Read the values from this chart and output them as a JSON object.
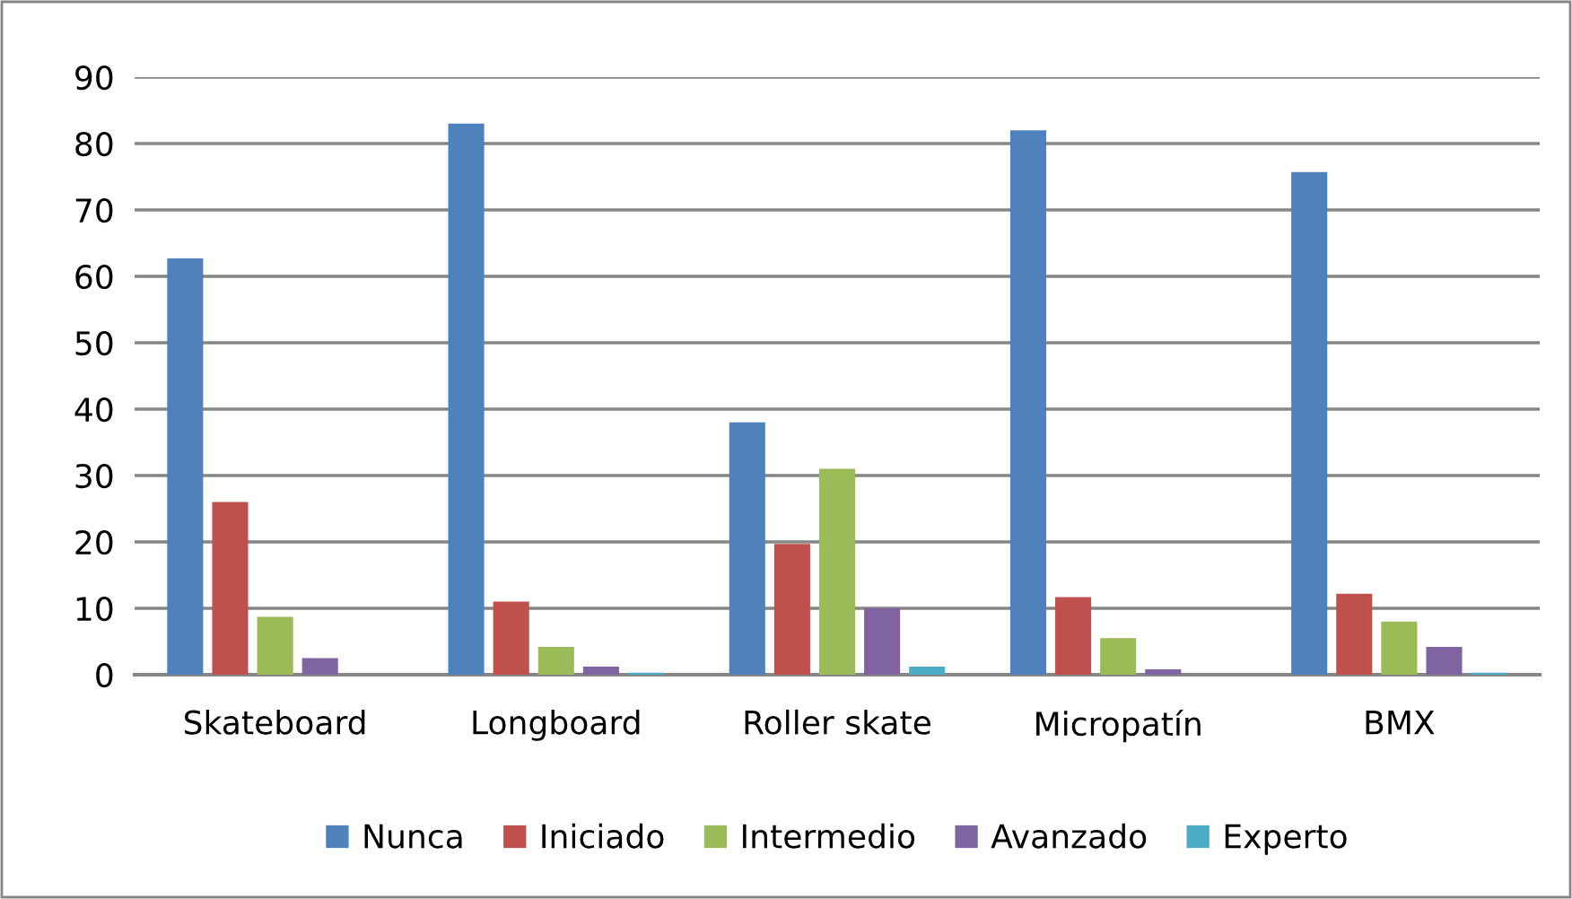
{
  "chart_data": {
    "type": "bar",
    "categories": [
      "Skateboard",
      "Longboard",
      "Roller skate",
      "Micropatín",
      "BMX"
    ],
    "series": [
      {
        "name": "Nunca",
        "color": "#4f81bd",
        "values": [
          62.7,
          83,
          38,
          82,
          75.7
        ]
      },
      {
        "name": "Iniciado",
        "color": "#c0504d",
        "values": [
          26,
          11,
          19.7,
          11.7,
          12.2
        ]
      },
      {
        "name": "Intermedio",
        "color": "#9bbb59",
        "values": [
          8.7,
          4.2,
          31,
          5.5,
          8
        ]
      },
      {
        "name": "Avanzado",
        "color": "#8064a2",
        "values": [
          2.5,
          1.2,
          10,
          0.8,
          4.2
        ]
      },
      {
        "name": "Experto",
        "color": "#4bacc6",
        "values": [
          0,
          0.3,
          1.2,
          0,
          0.3
        ]
      }
    ],
    "ylim": [
      0,
      90
    ],
    "yticks": [
      0,
      10,
      20,
      30,
      40,
      50,
      60,
      70,
      80,
      90
    ],
    "grid": "y",
    "legend": "bottom"
  }
}
